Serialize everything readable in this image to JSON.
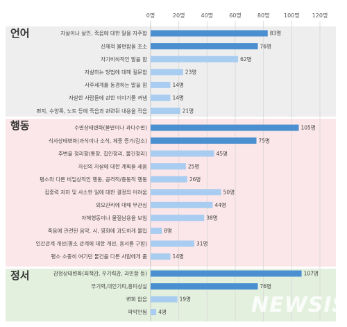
{
  "chart_data": {
    "type": "bar",
    "orientation": "horizontal",
    "value_unit": "명",
    "xlim": [
      0,
      120
    ],
    "x_ticks": [
      "0명",
      "20명",
      "40명",
      "60명",
      "80명",
      "100명",
      "120명"
    ],
    "grid": true,
    "groups": [
      {
        "name": "언어",
        "rows": [
          {
            "label": "자살이나 살인, 죽음에 대한 말을 자주함",
            "value": 83,
            "value_label": "83명",
            "highlight": true
          },
          {
            "label": "신체적 불편함을 호소",
            "value": 76,
            "value_label": "76명",
            "highlight": true
          },
          {
            "label": "자기비하적인 말을 함",
            "value": 62,
            "value_label": "62명",
            "highlight": false
          },
          {
            "label": "자살하는 방법에 대해 질문함",
            "value": 23,
            "value_label": "23명",
            "highlight": false
          },
          {
            "label": "사후세계를 동경하는 말을 함",
            "value": 14,
            "value_label": "14명",
            "highlight": false
          },
          {
            "label": "자살한 사람들에 관한 이야기를 꺼냄",
            "value": 14,
            "value_label": "14명",
            "highlight": false
          },
          {
            "label": "편지, 수양록, 노트 등에 죽음과 관련된 내용을 적음",
            "value": 21,
            "value_label": "21명",
            "highlight": false
          }
        ]
      },
      {
        "name": "행동",
        "rows": [
          {
            "label": "수면상태변화(불면이나 과다수면)",
            "value": 105,
            "value_label": "105명",
            "highlight": true
          },
          {
            "label": "식사상태변화(과식이나 소식, 체중 증가/감소)",
            "value": 75,
            "value_label": "75명",
            "highlight": true
          },
          {
            "label": "주변을 정리함(통장, 집안정리, 물건정리)",
            "value": 45,
            "value_label": "45명",
            "highlight": false
          },
          {
            "label": "자신의 자살에 대한 계획을 세움",
            "value": 25,
            "value_label": "25명",
            "highlight": false
          },
          {
            "label": "평소와 다른 비일상적인 행동, 공격적/충동적 행동",
            "value": 26,
            "value_label": "26명",
            "highlight": false
          },
          {
            "label": "집중력 저하 및 사소한 일에 대한 결정의 어려움",
            "value": 50,
            "value_label": "50명",
            "highlight": false
          },
          {
            "label": "외모관리에 대해 무관심",
            "value": 44,
            "value_label": "44명",
            "highlight": false
          },
          {
            "label": "자해행동이나 물질남용을 보임",
            "value": 38,
            "value_label": "38명",
            "highlight": false
          },
          {
            "label": "죽음에 관련된 음악, 시, 영화에 과도하게 몰입",
            "value": 8,
            "value_label": "8명",
            "highlight": false
          },
          {
            "label": "인간관계 개선(평소 관계에 대한 개선, 용서를 구함)",
            "value": 31,
            "value_label": "31명",
            "highlight": false
          },
          {
            "label": "평소 소중히 여기던 물건을 다른 사람에게 줌",
            "value": 14,
            "value_label": "14명",
            "highlight": false
          }
        ]
      },
      {
        "name": "정서",
        "rows": [
          {
            "label": "감정상태변화(죄책감, 우기력감, 과민함 등)",
            "value": 107,
            "value_label": "107명",
            "highlight": true
          },
          {
            "label": "무기력,대인기피,흥미상실",
            "value": 76,
            "value_label": "76명",
            "highlight": true
          },
          {
            "label": "변화 없음",
            "value": 19,
            "value_label": "19명",
            "highlight": false
          },
          {
            "label": "파악안됨",
            "value": 4,
            "value_label": "4명",
            "highlight": false
          }
        ]
      }
    ]
  },
  "colors": {
    "highlight_bar": "#4a8fd0",
    "normal_bar": "#a9cdf0",
    "group_bg": [
      "#eeeeee",
      "#fbe7e9",
      "#e3f0de"
    ]
  },
  "watermark": "NEWSIS"
}
